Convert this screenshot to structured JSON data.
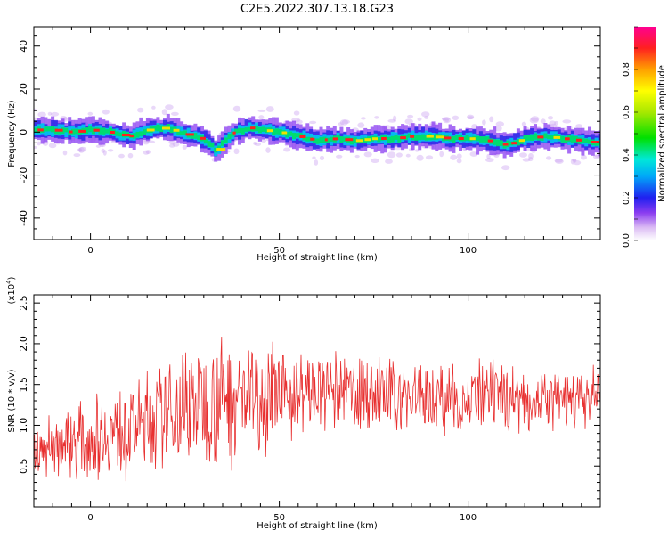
{
  "title": "C2E5.2022.307.13.18.G23",
  "chart_data": [
    {
      "type": "heatmap",
      "xlabel": "Height of straight line (km)",
      "ylabel": "Frequency (Hz)",
      "xlim": [
        -15,
        135
      ],
      "ylim": [
        -50,
        49
      ],
      "xticks": [
        0,
        50,
        100
      ],
      "yticks": [
        -40,
        -20,
        0,
        20,
        40
      ],
      "ridge": {
        "x": [
          -15,
          -10,
          -5,
          0,
          5,
          10,
          15,
          20,
          25,
          28,
          31,
          33,
          35,
          38,
          42,
          45,
          50,
          55,
          60,
          65,
          70,
          75,
          80,
          85,
          90,
          95,
          100,
          105,
          110,
          115,
          120,
          125,
          130,
          134
        ],
        "y": [
          1,
          1,
          0,
          1,
          0,
          -2,
          1,
          2,
          -1,
          -2,
          -5,
          -9,
          -4,
          0,
          2,
          1,
          0,
          -2,
          -4,
          -3,
          -4,
          -3,
          -3,
          -2,
          -2,
          -3,
          -3,
          -4,
          -6,
          -3,
          -2,
          -3,
          -4,
          -5
        ]
      },
      "colorbar": {
        "label": "Normalized spectral amplitude",
        "range": [
          0.0,
          1.0
        ],
        "ticks": [
          "0.0",
          "0.2",
          "0.4",
          "0.6",
          "0.8"
        ]
      }
    },
    {
      "type": "line",
      "xlabel": "Height of straight line (km)",
      "ylabel": "SNR (10 * v/v)",
      "yscale_label": "(x10",
      "yscale_exp": "4",
      "yscale_close": ")",
      "xlim": [
        -15,
        135
      ],
      "ylim": [
        0.0,
        2.6
      ],
      "xticks": [
        0,
        50,
        100
      ],
      "yticks": [
        "0.5",
        "1.0",
        "1.5",
        "2.0",
        "2.5"
      ],
      "color": "#e83030",
      "envelope": {
        "x": [
          -15,
          -10,
          0,
          10,
          20,
          25,
          30,
          35,
          40,
          45,
          50,
          55,
          60,
          70,
          80,
          90,
          100,
          110,
          120,
          130,
          135
        ],
        "mean": [
          0.65,
          0.75,
          0.85,
          0.95,
          1.1,
          1.25,
          1.3,
          1.35,
          1.35,
          1.4,
          1.35,
          1.4,
          1.4,
          1.4,
          1.35,
          1.35,
          1.3,
          1.35,
          1.3,
          1.3,
          1.35
        ],
        "amp": [
          0.3,
          0.4,
          0.45,
          0.55,
          0.6,
          0.7,
          0.75,
          0.8,
          0.8,
          0.7,
          0.55,
          0.5,
          0.45,
          0.45,
          0.45,
          0.4,
          0.45,
          0.4,
          0.35,
          0.35,
          0.35
        ]
      },
      "samples": 900
    }
  ]
}
